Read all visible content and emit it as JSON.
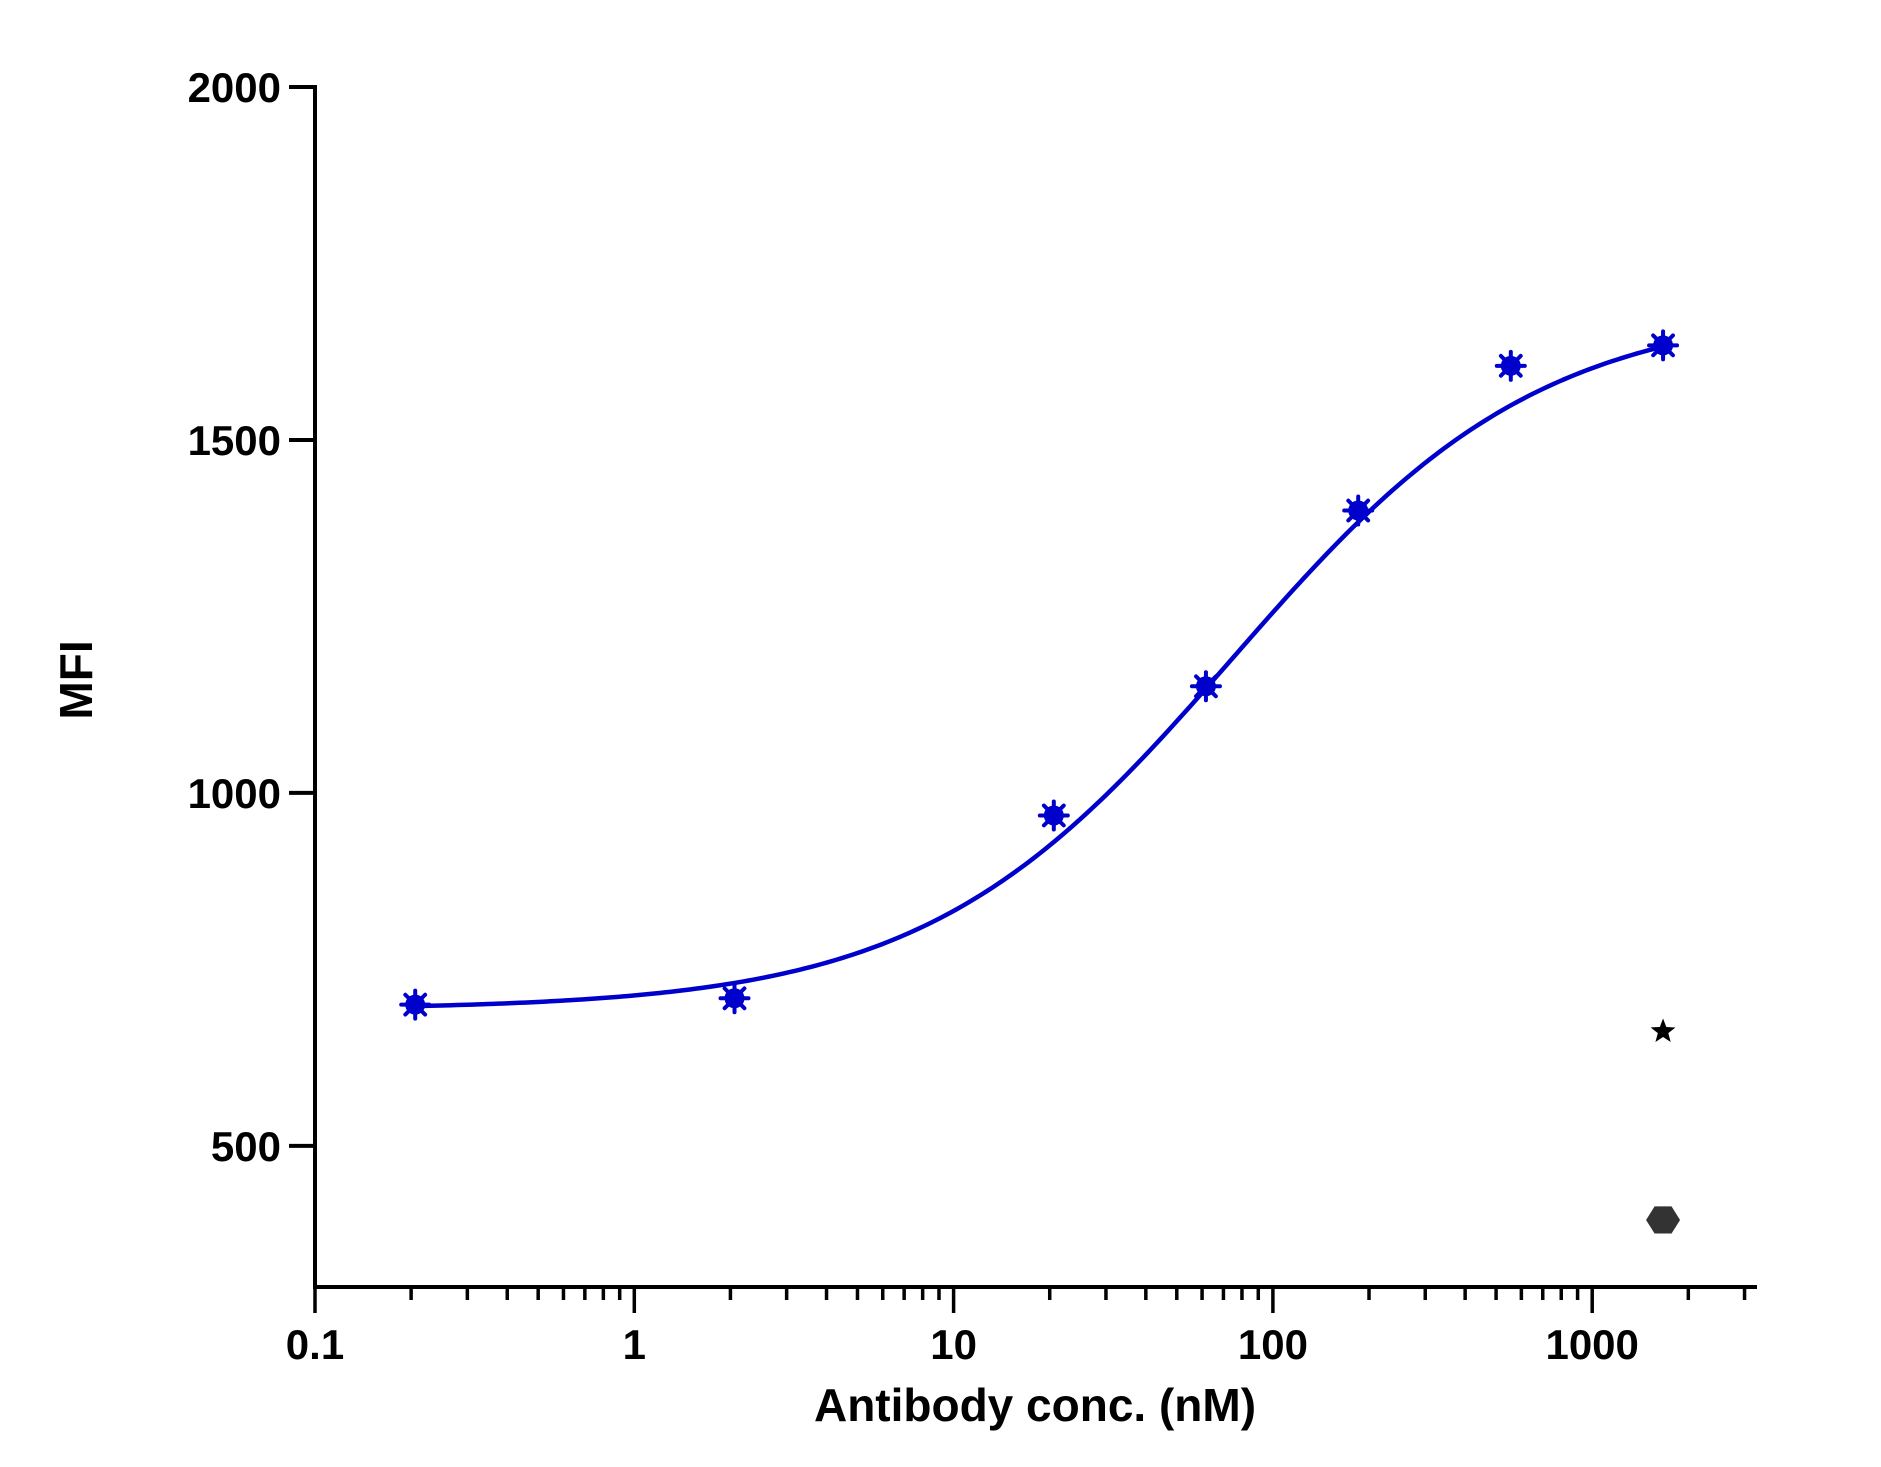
{
  "chart_data": {
    "type": "scatter",
    "title": "",
    "xlabel": "Antibody conc. (nM)",
    "ylabel": "MFI",
    "x_scale": "log",
    "xlim": [
      0.1,
      3200
    ],
    "ylim": [
      300,
      2000
    ],
    "x_ticks": [
      0.1,
      1,
      10,
      100,
      1000
    ],
    "x_tick_labels": [
      "0.1",
      "1",
      "10",
      "100",
      "1000"
    ],
    "y_ticks": [
      500,
      1000,
      1500,
      2000
    ],
    "y_tick_labels": [
      "500",
      "1000",
      "1500",
      "2000"
    ],
    "grid": false,
    "legend": "none",
    "series": [
      {
        "color": "#0000cc",
        "marker": "asterisk",
        "points": [
          {
            "x": 0.206,
            "y": 700
          },
          {
            "x": 2.06,
            "y": 709
          },
          {
            "x": 20.6,
            "y": 968
          },
          {
            "x": 61.7,
            "y": 1151
          },
          {
            "x": 185,
            "y": 1400
          },
          {
            "x": 556,
            "y": 1605
          },
          {
            "x": 1667,
            "y": 1634
          }
        ],
        "fit": {
          "model": "4PL",
          "bottom": 693,
          "top": 1690,
          "ec50": 75,
          "hill": 0.9,
          "x_range": [
            0.206,
            1667
          ]
        }
      },
      {
        "color": "#000000",
        "marker": "star",
        "points": [
          {
            "x": 1667,
            "y": 662
          }
        ]
      },
      {
        "color": "#333333",
        "marker": "hexagon",
        "points": [
          {
            "x": 1667,
            "y": 395
          }
        ]
      }
    ]
  }
}
